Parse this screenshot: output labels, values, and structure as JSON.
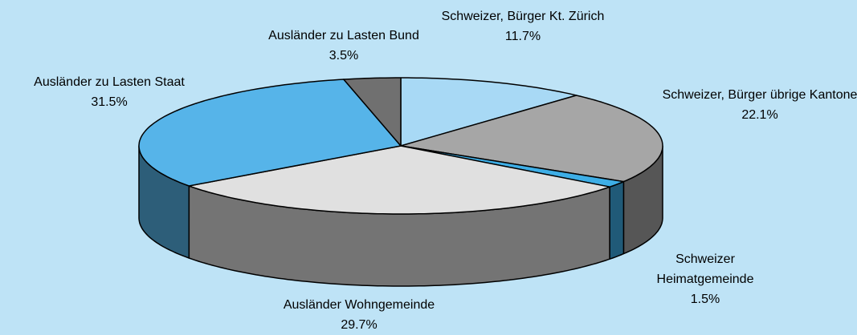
{
  "chart_data": {
    "type": "pie3d",
    "categories": [
      "Schweizer, Bürger Kt. Zürich",
      "Schweizer, Bürger übrige Kantone",
      "Schweizer Heimatgemeinde",
      "Ausländer Wohngemeinde",
      "Ausländer zu Lasten Staat",
      "Ausländer zu Lasten Bund"
    ],
    "values": [
      11.7,
      22.1,
      1.5,
      29.7,
      31.5,
      3.5
    ],
    "value_labels": [
      "11.7%",
      "22.1%",
      "1.5%",
      "29.7%",
      "31.5%",
      "3.5%"
    ],
    "colors": [
      "#a8d9f5",
      "#a6a6a6",
      "#3eaee6",
      "#e0e0e0",
      "#56b4e9",
      "#707070"
    ]
  }
}
